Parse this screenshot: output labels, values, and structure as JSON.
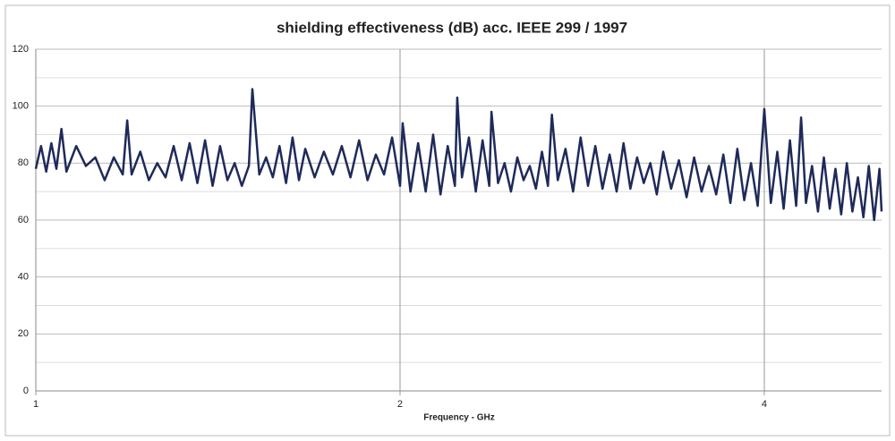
{
  "chart_data": {
    "type": "line",
    "title": "shielding effectiveness (dB) acc. IEEE 299 / 1997",
    "x_label": "Frequency - GHz",
    "x_scale": "log",
    "xlim": [
      1,
      5
    ],
    "xticks": [
      1,
      2,
      4
    ],
    "ylim": [
      0,
      120
    ],
    "yticks": [
      0,
      20,
      40,
      60,
      80,
      100,
      120
    ],
    "grid": true,
    "minor_grid": true,
    "color": "#1f2a5a",
    "x": [
      1.0,
      1.01,
      1.02,
      1.03,
      1.04,
      1.05,
      1.06,
      1.08,
      1.1,
      1.12,
      1.14,
      1.16,
      1.18,
      1.19,
      1.2,
      1.22,
      1.24,
      1.26,
      1.28,
      1.3,
      1.32,
      1.34,
      1.36,
      1.38,
      1.4,
      1.42,
      1.44,
      1.46,
      1.48,
      1.5,
      1.51,
      1.53,
      1.55,
      1.57,
      1.59,
      1.61,
      1.63,
      1.65,
      1.67,
      1.7,
      1.73,
      1.76,
      1.79,
      1.82,
      1.85,
      1.88,
      1.91,
      1.94,
      1.97,
      2.0,
      2.01,
      2.04,
      2.07,
      2.1,
      2.13,
      2.16,
      2.19,
      2.22,
      2.23,
      2.25,
      2.28,
      2.31,
      2.34,
      2.37,
      2.38,
      2.41,
      2.44,
      2.47,
      2.5,
      2.53,
      2.56,
      2.59,
      2.62,
      2.65,
      2.67,
      2.7,
      2.74,
      2.78,
      2.82,
      2.86,
      2.9,
      2.94,
      2.98,
      3.02,
      3.06,
      3.1,
      3.14,
      3.18,
      3.22,
      3.26,
      3.3,
      3.35,
      3.4,
      3.45,
      3.5,
      3.55,
      3.6,
      3.65,
      3.7,
      3.75,
      3.8,
      3.85,
      3.9,
      3.95,
      4.0,
      4.05,
      4.1,
      4.15,
      4.2,
      4.25,
      4.29,
      4.33,
      4.38,
      4.43,
      4.48,
      4.53,
      4.58,
      4.63,
      4.68,
      4.73,
      4.78,
      4.83,
      4.88,
      4.93,
      4.98,
      5.0
    ],
    "values": [
      78,
      86,
      77,
      87,
      78,
      92,
      77,
      86,
      79,
      82,
      74,
      82,
      76,
      95,
      76,
      84,
      74,
      80,
      75,
      86,
      74,
      87,
      73,
      88,
      72,
      86,
      74,
      80,
      72,
      79,
      106,
      76,
      82,
      75,
      86,
      73,
      89,
      74,
      85,
      75,
      84,
      76,
      86,
      75,
      88,
      74,
      83,
      76,
      89,
      72,
      94,
      70,
      87,
      70,
      90,
      69,
      86,
      72,
      103,
      75,
      89,
      70,
      88,
      72,
      98,
      73,
      80,
      70,
      82,
      74,
      79,
      71,
      84,
      72,
      97,
      74,
      85,
      70,
      89,
      72,
      86,
      71,
      83,
      70,
      87,
      71,
      82,
      73,
      80,
      69,
      84,
      71,
      81,
      68,
      82,
      70,
      79,
      69,
      83,
      66,
      85,
      67,
      80,
      65,
      99,
      66,
      84,
      64,
      88,
      65,
      96,
      66,
      79,
      63,
      82,
      64,
      78,
      62,
      80,
      63,
      75,
      61,
      79,
      60,
      78,
      63
    ]
  }
}
